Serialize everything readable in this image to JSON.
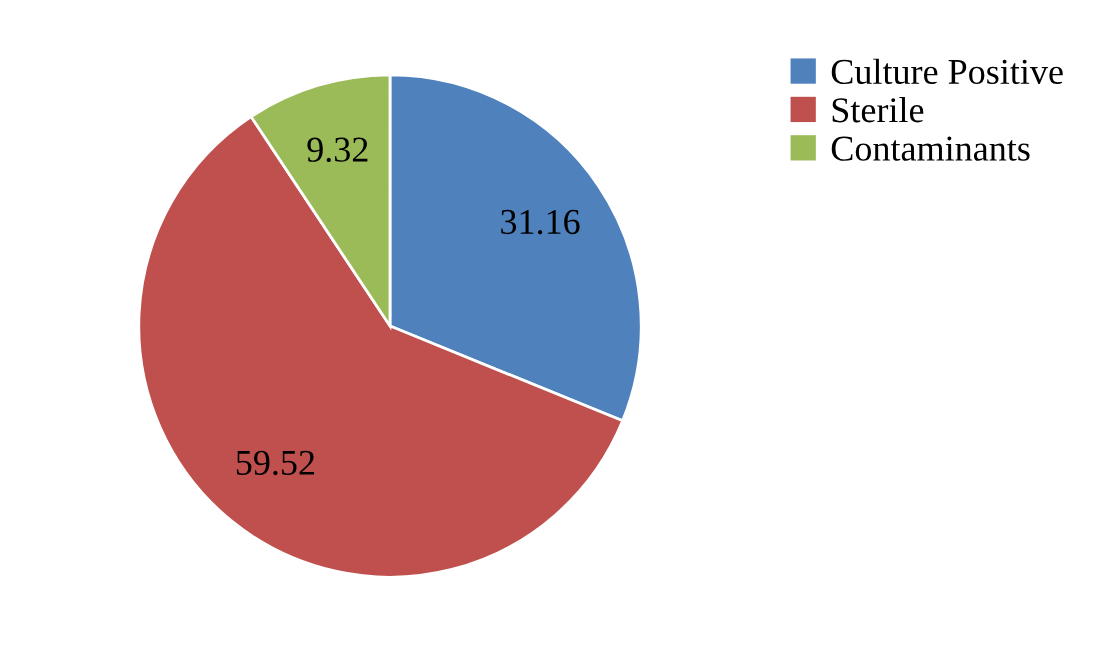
{
  "chart_data": {
    "type": "pie",
    "categories": [
      "Culture Positive",
      "Sterile",
      "Contaminants"
    ],
    "values": [
      31.16,
      59.52,
      9.32
    ],
    "colors": [
      "#4f81bd",
      "#c0504d",
      "#9bbb59"
    ],
    "data_labels": true,
    "legend": "top right"
  }
}
